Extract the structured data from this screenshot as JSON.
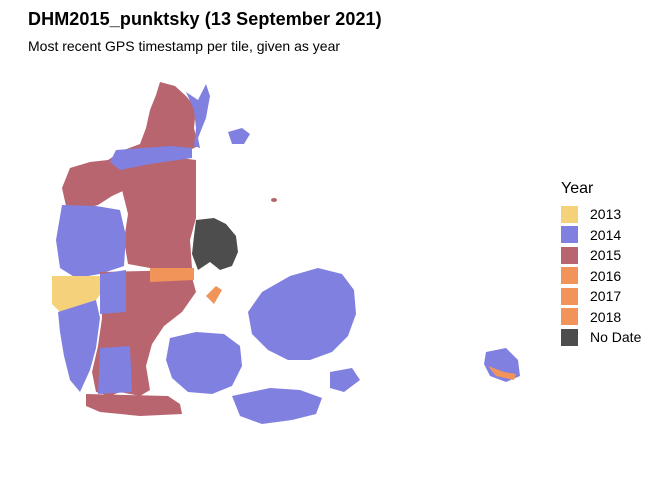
{
  "title": "DHM2015_punktsky (13 September 2021)",
  "subtitle": "Most recent GPS timestamp per tile, given as year",
  "legend": {
    "title": "Year",
    "items": [
      {
        "label": "2013",
        "color": "#F5D27A"
      },
      {
        "label": "2014",
        "color": "#8080E0"
      },
      {
        "label": "2015",
        "color": "#B8656F"
      },
      {
        "label": "2016",
        "color": "#F0945A"
      },
      {
        "label": "2017",
        "color": "#F0945A"
      },
      {
        "label": "2018",
        "color": "#F0945A"
      },
      {
        "label": "No Date",
        "color": "#4D4D4D"
      }
    ]
  }
}
